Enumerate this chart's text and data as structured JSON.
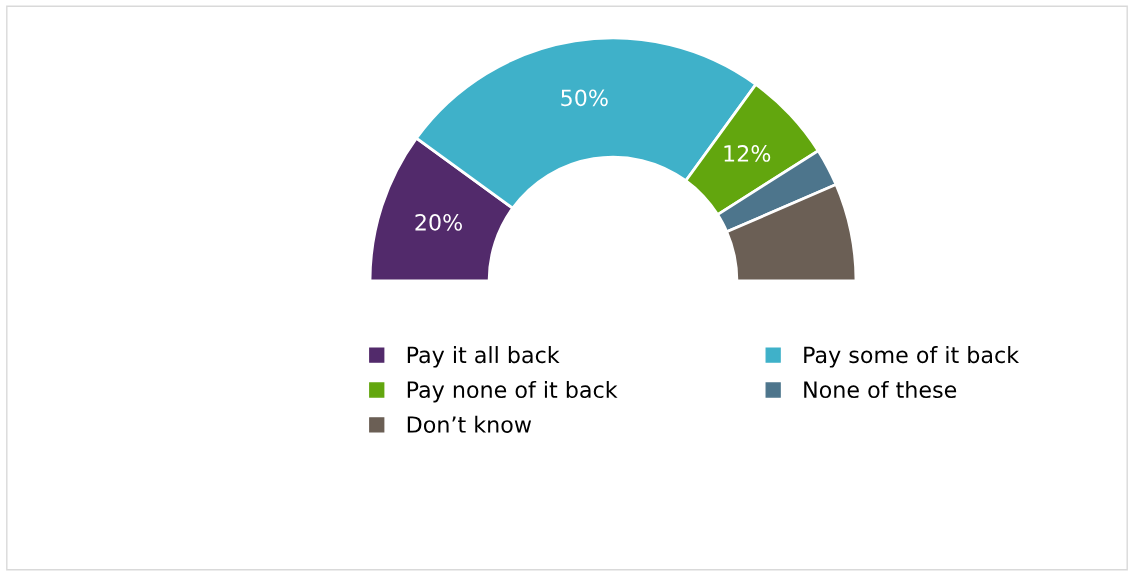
{
  "chart_data": {
    "type": "donut",
    "categories": [
      "Pay it all back",
      "Pay some of it back",
      "Pay none of it back",
      "None of these",
      "Don’t know"
    ],
    "values": [
      20,
      50,
      12,
      5,
      13
    ],
    "colors": [
      "#522a6b",
      "#3fb1c9",
      "#62a60e",
      "#4d758c",
      "#6b5f55"
    ],
    "value_labels": [
      "20%",
      "50%",
      "12%",
      null,
      null
    ],
    "legend": "bottom"
  }
}
